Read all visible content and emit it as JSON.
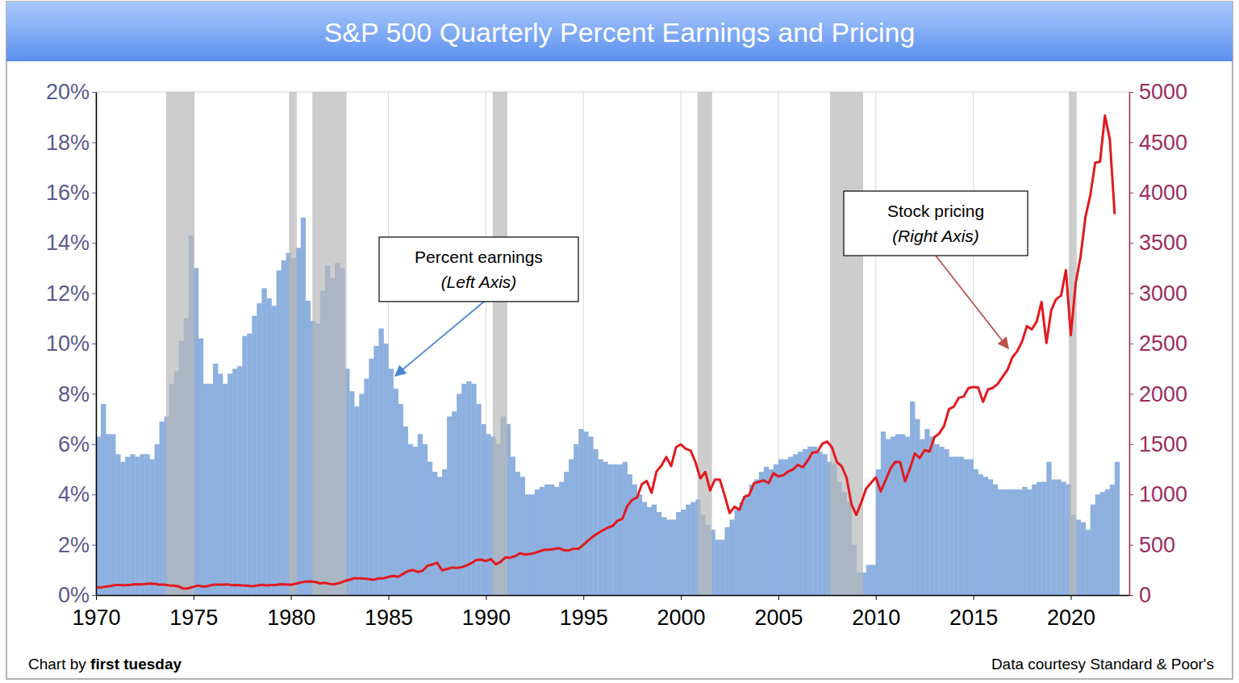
{
  "chart_data": {
    "type": "bar",
    "title": "S&P 500 Quarterly Percent Earnings and Pricing",
    "credit": [
      "Chart by ",
      "first tuesday"
    ],
    "source": "Data courtesy Standard & Poor's",
    "xlim": [
      1970,
      2023
    ],
    "xticks": [
      1970,
      1975,
      1980,
      1985,
      1990,
      1995,
      2000,
      2005,
      2010,
      2015,
      2020
    ],
    "ylim": [
      0,
      20
    ],
    "yticks": [
      {
        "value": 0,
        "label": "0%"
      },
      {
        "value": 2,
        "label": "2%"
      },
      {
        "value": 4,
        "label": "4%"
      },
      {
        "value": 6,
        "label": "6%"
      },
      {
        "value": 8,
        "label": "8%"
      },
      {
        "value": 10,
        "label": "10%"
      },
      {
        "value": 12,
        "label": "12%"
      },
      {
        "value": 14,
        "label": "14%"
      },
      {
        "value": 16,
        "label": "16%"
      },
      {
        "value": 18,
        "label": "18%"
      },
      {
        "value": 20,
        "label": "20%"
      }
    ],
    "y2lim": [
      0,
      5000
    ],
    "y2ticks": [
      0,
      500,
      1000,
      1500,
      2000,
      2500,
      3000,
      3500,
      4000,
      4500,
      5000
    ],
    "grid": true,
    "recessions": [
      [
        1973.6,
        1975.05
      ],
      [
        1979.9,
        1980.3
      ],
      [
        1981.1,
        1982.85
      ],
      [
        1990.35,
        1991.1
      ],
      [
        2000.85,
        2001.6
      ],
      [
        2007.65,
        2009.35
      ],
      [
        2019.9,
        2020.3
      ]
    ],
    "x": [
      1970,
      1970.25,
      1970.5,
      1970.75,
      1971,
      1971.25,
      1971.5,
      1971.75,
      1972,
      1972.25,
      1972.5,
      1972.75,
      1973,
      1973.25,
      1973.5,
      1973.75,
      1974,
      1974.25,
      1974.5,
      1974.75,
      1975,
      1975.25,
      1975.5,
      1975.75,
      1976,
      1976.25,
      1976.5,
      1976.75,
      1977,
      1977.25,
      1977.5,
      1977.75,
      1978,
      1978.25,
      1978.5,
      1978.75,
      1979,
      1979.25,
      1979.5,
      1979.75,
      1980,
      1980.25,
      1980.5,
      1980.75,
      1981,
      1981.25,
      1981.5,
      1981.75,
      1982,
      1982.25,
      1982.5,
      1982.75,
      1983,
      1983.25,
      1983.5,
      1983.75,
      1984,
      1984.25,
      1984.5,
      1984.75,
      1985,
      1985.25,
      1985.5,
      1985.75,
      1986,
      1986.25,
      1986.5,
      1986.75,
      1987,
      1987.25,
      1987.5,
      1987.75,
      1988,
      1988.25,
      1988.5,
      1988.75,
      1989,
      1989.25,
      1989.5,
      1989.75,
      1990,
      1990.25,
      1990.5,
      1990.75,
      1991,
      1991.25,
      1991.5,
      1991.75,
      1992,
      1992.25,
      1992.5,
      1992.75,
      1993,
      1993.25,
      1993.5,
      1993.75,
      1994,
      1994.25,
      1994.5,
      1994.75,
      1995,
      1995.25,
      1995.5,
      1995.75,
      1996,
      1996.25,
      1996.5,
      1996.75,
      1997,
      1997.25,
      1997.5,
      1997.75,
      1998,
      1998.25,
      1998.5,
      1998.75,
      1999,
      1999.25,
      1999.5,
      1999.75,
      2000,
      2000.25,
      2000.5,
      2000.75,
      2001,
      2001.25,
      2001.5,
      2001.75,
      2002,
      2002.25,
      2002.5,
      2002.75,
      2003,
      2003.25,
      2003.5,
      2003.75,
      2004,
      2004.25,
      2004.5,
      2004.75,
      2005,
      2005.25,
      2005.5,
      2005.75,
      2006,
      2006.25,
      2006.5,
      2006.75,
      2007,
      2007.25,
      2007.5,
      2007.75,
      2008,
      2008.25,
      2008.5,
      2008.75,
      2009,
      2009.25,
      2009.5,
      2009.75,
      2010,
      2010.25,
      2010.5,
      2010.75,
      2011,
      2011.25,
      2011.5,
      2011.75,
      2012,
      2012.25,
      2012.5,
      2012.75,
      2013,
      2013.25,
      2013.5,
      2013.75,
      2014,
      2014.25,
      2014.5,
      2014.75,
      2015,
      2015.25,
      2015.5,
      2015.75,
      2016,
      2016.25,
      2016.5,
      2016.75,
      2017,
      2017.25,
      2017.5,
      2017.75,
      2018,
      2018.25,
      2018.5,
      2018.75,
      2019,
      2019.25,
      2019.5,
      2019.75,
      2020,
      2020.25,
      2020.5,
      2020.75,
      2021,
      2021.25,
      2021.5,
      2021.75,
      2022,
      2022.25
    ],
    "series": [
      {
        "name": "Percent earnings",
        "note": "(Left Axis)",
        "type": "bar",
        "color": "#8db0df",
        "values": [
          6.3,
          7.6,
          6.4,
          6.4,
          5.6,
          5.3,
          5.5,
          5.6,
          5.5,
          5.6,
          5.6,
          5.4,
          6.0,
          6.9,
          7.1,
          8.4,
          8.9,
          10.1,
          11.0,
          14.3,
          13.0,
          10.2,
          8.4,
          8.4,
          9.2,
          8.8,
          8.4,
          8.8,
          9.0,
          9.1,
          10.3,
          10.4,
          11.1,
          11.6,
          12.2,
          11.8,
          11.5,
          12.9,
          13.3,
          13.6,
          13.4,
          13.8,
          15.0,
          11.7,
          10.9,
          10.8,
          12.1,
          13.1,
          12.6,
          13.2,
          13.0,
          9.0,
          8.1,
          7.5,
          8.0,
          8.6,
          9.4,
          9.9,
          10.6,
          10.0,
          9.0,
          8.2,
          7.6,
          6.7,
          6.0,
          5.9,
          6.4,
          6.0,
          5.3,
          4.9,
          4.7,
          5.0,
          7.1,
          7.3,
          8.0,
          8.4,
          8.5,
          8.4,
          7.6,
          6.8,
          6.4,
          6.3,
          6.0,
          7.1,
          6.8,
          5.5,
          4.9,
          4.7,
          4.0,
          4.0,
          4.2,
          4.3,
          4.4,
          4.4,
          4.3,
          4.5,
          4.9,
          5.4,
          6.0,
          6.6,
          6.5,
          6.3,
          5.8,
          5.4,
          5.3,
          5.2,
          5.2,
          5.2,
          5.3,
          4.8,
          4.4,
          4.0,
          3.7,
          3.5,
          3.6,
          3.3,
          3.1,
          3.0,
          3.0,
          3.3,
          3.4,
          3.6,
          3.7,
          3.8,
          3.2,
          2.8,
          2.6,
          2.2,
          2.2,
          2.7,
          3.0,
          3.4,
          3.7,
          4.0,
          4.4,
          4.6,
          4.9,
          5.1,
          5.0,
          5.2,
          5.4,
          5.4,
          5.5,
          5.6,
          5.7,
          5.8,
          5.9,
          5.9,
          5.7,
          5.6,
          5.3,
          5.2,
          4.5,
          4.1,
          3.7,
          2.0,
          0.9,
          0.9,
          1.2,
          1.2,
          5.0,
          6.5,
          6.2,
          6.3,
          6.4,
          6.4,
          6.3,
          7.7,
          7.0,
          6.2,
          6.6,
          6.3,
          6.0,
          5.9,
          5.8,
          5.5,
          5.5,
          5.5,
          5.4,
          5.4,
          5.0,
          4.8,
          4.7,
          4.6,
          4.4,
          4.2,
          4.2,
          4.2,
          4.2,
          4.2,
          4.3,
          4.2,
          4.4,
          4.5,
          4.5,
          5.3,
          4.6,
          4.6,
          4.5,
          4.4,
          3.2,
          3.0,
          2.9,
          2.6,
          3.6,
          4.0,
          4.1,
          4.2,
          4.4,
          5.3
        ]
      },
      {
        "name": "Stock pricing",
        "note": "(Right Axis)",
        "type": "line",
        "axis": "y2",
        "color": "#e3191f",
        "values": [
          80,
          75,
          85,
          90,
          100,
          100,
          98,
          102,
          108,
          107,
          110,
          115,
          113,
          104,
          105,
          97,
          94,
          86,
          64,
          68,
          83,
          95,
          84,
          90,
          103,
          104,
          105,
          107,
          98,
          100,
          96,
          95,
          89,
          95,
          102,
          96,
          101,
          102,
          109,
          107,
          102,
          114,
          125,
          135,
          136,
          131,
          116,
          122,
          111,
          109,
          120,
          140,
          152,
          168,
          166,
          164,
          159,
          153,
          166,
          167,
          180,
          191,
          182,
          211,
          238,
          250,
          231,
          242,
          291,
          304,
          321,
          247,
          258,
          273,
          271,
          277,
          294,
          317,
          349,
          353,
          339,
          358,
          306,
          330,
          375,
          371,
          387,
          417,
          403,
          408,
          417,
          435,
          451,
          450,
          458,
          466,
          445,
          444,
          462,
          459,
          500,
          544,
          584,
          615,
          645,
          670,
          687,
          740,
          757,
          885,
          947,
          970,
          1101,
          1133,
          1017,
          1229,
          1286,
          1372,
          1282,
          1469,
          1498,
          1454,
          1436,
          1320,
          1160,
          1224,
          1040,
          1148,
          1147,
          989,
          815,
          879,
          848,
          974,
          995,
          1111,
          1126,
          1140,
          1114,
          1211,
          1180,
          1191,
          1228,
          1248,
          1294,
          1270,
          1335,
          1418,
          1420,
          1503,
          1526,
          1468,
          1322,
          1280,
          1166,
          903,
          797,
          919,
          1057,
          1115,
          1169,
          1030,
          1141,
          1257,
          1325,
          1320,
          1131,
          1257,
          1408,
          1362,
          1440,
          1426,
          1569,
          1606,
          1681,
          1848,
          1872,
          1960,
          1972,
          2058,
          2067,
          2063,
          1920,
          2043,
          2059,
          2098,
          2168,
          2238,
          2362,
          2423,
          2519,
          2673,
          2640,
          2718,
          2913,
          2506,
          2834,
          2941,
          2976,
          3230,
          2584,
          3100,
          3363,
          3756,
          3972,
          4297,
          4307,
          4766,
          4530,
          3785
        ]
      }
    ]
  }
}
